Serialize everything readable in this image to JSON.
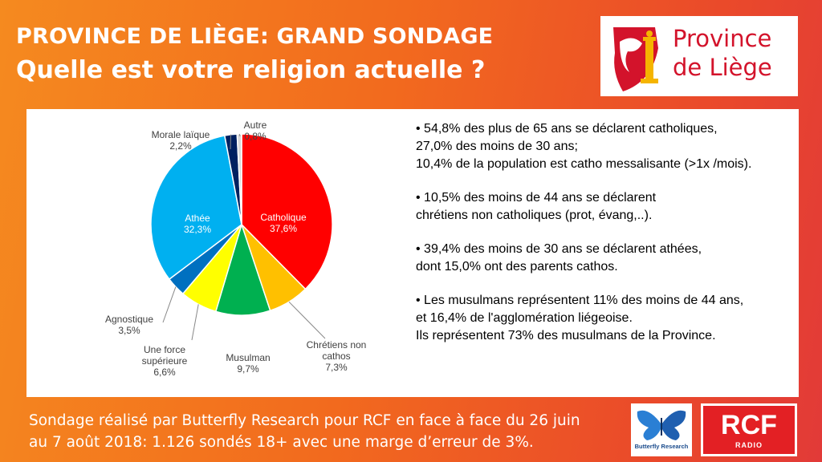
{
  "header": {
    "title": "PROVINCE DE LIÈGE: GRAND SONDAGE",
    "subtitle": "Quelle est votre religion actuelle ?"
  },
  "logo": {
    "line1": "Province",
    "line2": "de Liège"
  },
  "chart_data": {
    "type": "pie",
    "title": "",
    "legend": "none",
    "slices": [
      {
        "label": "Catholique",
        "value": 37.6,
        "value_label": "37,6%",
        "color": "#ff0000"
      },
      {
        "label": "Chrétiens non cathos",
        "value": 7.3,
        "value_label": "7,3%",
        "color": "#ffc000"
      },
      {
        "label": "Musulman",
        "value": 9.7,
        "value_label": "9,7%",
        "color": "#00b050"
      },
      {
        "label": "Une force supérieure",
        "value": 6.6,
        "value_label": "6,6%",
        "color": "#ffff00"
      },
      {
        "label": "Agnostique",
        "value": 3.5,
        "value_label": "3,5%",
        "color": "#0070c0"
      },
      {
        "label": "Athée",
        "value": 32.3,
        "value_label": "32,3%",
        "color": "#00b0f0"
      },
      {
        "label": "Morale laïque",
        "value": 2.2,
        "value_label": "2,2%",
        "color": "#002060"
      },
      {
        "label": "Autre",
        "value": 0.8,
        "value_label": "0,8%",
        "color": "#d9d9d9"
      }
    ]
  },
  "bullets": [
    {
      "lines": [
        "• 54,8% des plus de 65 ans se déclarent catholiques,",
        "27,0% des moins de 30 ans;",
        "10,4% de la population est catho messalisante (>1x /mois)."
      ]
    },
    {
      "lines": [
        "• 10,5% des moins de 44 ans se déclarent",
        "chrétiens non catholiques (prot, évang,..)."
      ]
    },
    {
      "lines": [
        "• 39,4% des moins de 30 ans se déclarent athées,",
        "dont 15,0% ont des parents cathos."
      ]
    },
    {
      "lines": [
        "• Les musulmans représentent 11% des moins de 44 ans,",
        "et 16,4% de l'agglomération liégeoise.",
        "Ils représentent 73% des musulmans de la Province."
      ]
    }
  ],
  "footer": {
    "line1": "Sondage réalisé par Butterfly Research pour RCF en face à face du 26 juin",
    "line2": "au 7 août 2018:  1.126 sondés 18+ avec une marge d’erreur de 3%."
  },
  "partner_logos": {
    "butterfly": "Butterfly Research",
    "rcf": "RCF",
    "rcf_sub": "RADIO"
  }
}
